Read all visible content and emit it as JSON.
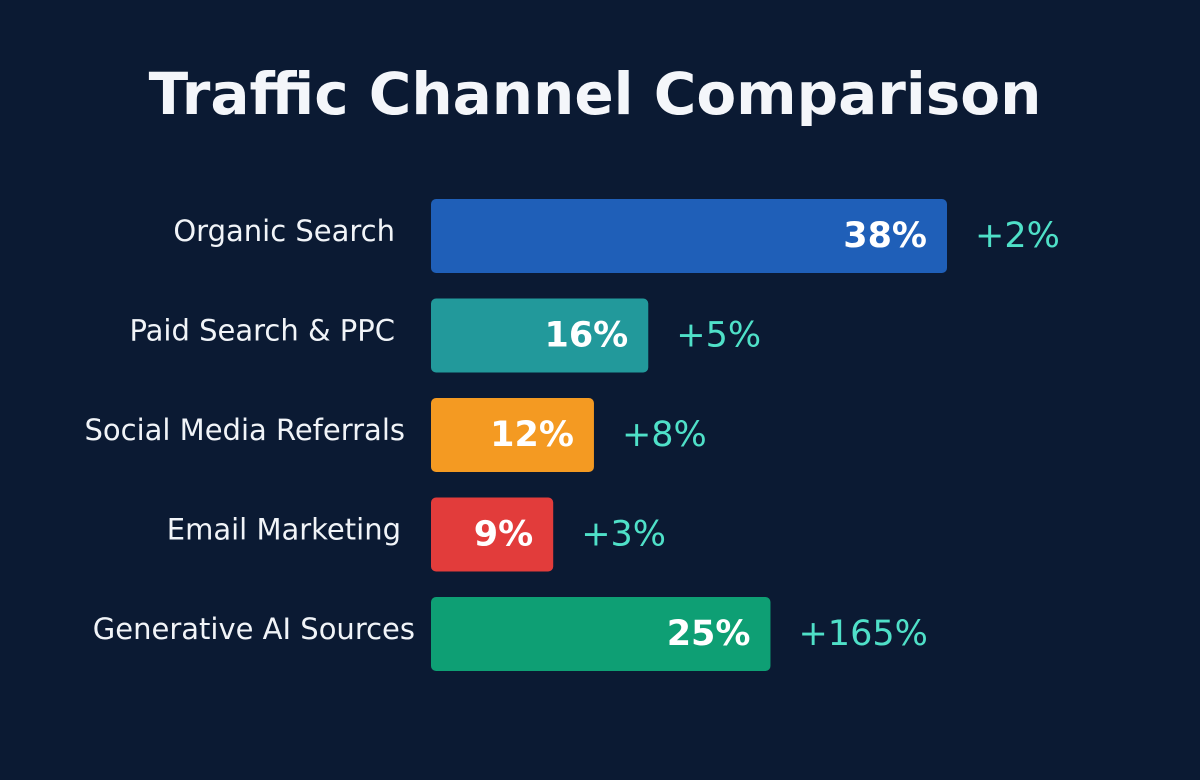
{
  "chart_data": {
    "type": "bar",
    "orientation": "horizontal",
    "title": "Traffic Channel Comparison",
    "categories": [
      "Organic Search",
      "Paid Search & PPC",
      "Social Media Referrals",
      "Email Marketing",
      "Generative AI Sources"
    ],
    "values": [
      38,
      16,
      12,
      9,
      25
    ],
    "value_labels": [
      "38%",
      "16%",
      "12%",
      "9%",
      "25%"
    ],
    "changes": [
      "+2%",
      "+5%",
      "+8%",
      "+3%",
      "+165%"
    ],
    "colors": [
      "#1f5fb8",
      "#22999b",
      "#f49a22",
      "#e23c3b",
      "#0e9f74"
    ],
    "change_color": "#4fe0c8",
    "background": "#0b1a33",
    "xlim": [
      0,
      38
    ],
    "xlabel": "",
    "ylabel": "",
    "grid": false,
    "legend": "none"
  }
}
